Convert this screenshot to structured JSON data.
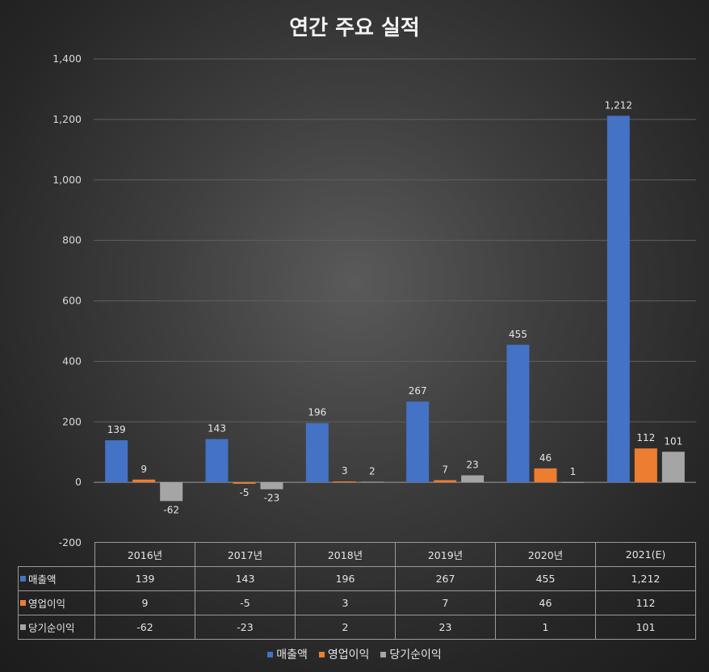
{
  "chart_data": {
    "type": "bar",
    "title": "연간 주요 실적",
    "categories": [
      "2016년",
      "2017년",
      "2018년",
      "2019년",
      "2020년",
      "2021(E)"
    ],
    "series": [
      {
        "name": "매출액",
        "values": [
          139,
          143,
          196,
          267,
          455,
          1212
        ],
        "labels": [
          "139",
          "143",
          "196",
          "267",
          "455",
          "1,212"
        ],
        "color": "#4472C4"
      },
      {
        "name": "영업이익",
        "values": [
          9,
          -5,
          3,
          7,
          46,
          112
        ],
        "labels": [
          "9",
          "-5",
          "3",
          "7",
          "46",
          "112"
        ],
        "color": "#ED7D31"
      },
      {
        "name": "당기순이익",
        "values": [
          -62,
          -23,
          2,
          23,
          1,
          101
        ],
        "labels": [
          "-62",
          "-23",
          "2",
          "23",
          "1",
          "101"
        ],
        "color": "#A5A5A5"
      }
    ],
    "ylim": [
      -200,
      1400
    ],
    "yticks": [
      -200,
      0,
      200,
      400,
      600,
      800,
      1000,
      1200,
      1400
    ],
    "ytick_labels": [
      "-200",
      "0",
      "200",
      "400",
      "600",
      "800",
      "1,000",
      "1,200",
      "1,400"
    ],
    "grid": true,
    "legend": "bottom",
    "data_table": true
  }
}
